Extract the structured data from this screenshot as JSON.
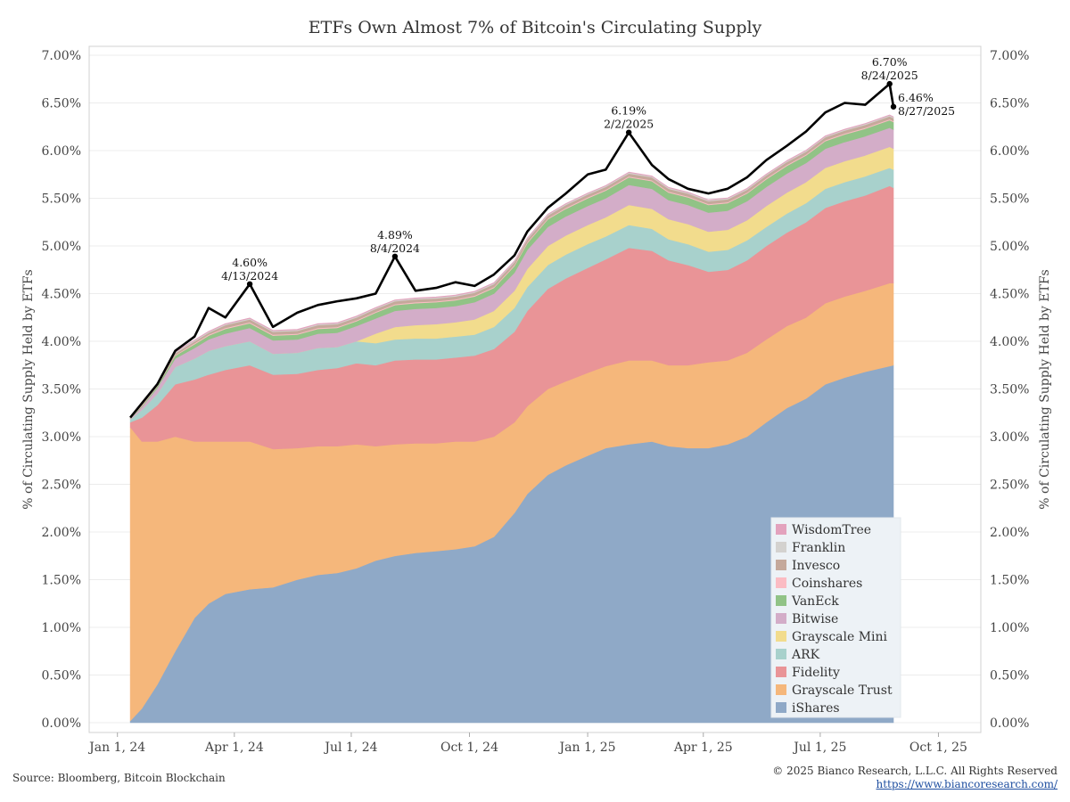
{
  "chart_data": {
    "type": "area",
    "stacked": true,
    "title": "ETFs Own Almost 7% of Bitcoin's Circulating Supply",
    "ylabel": "% of Circulating Supply Held by ETFs",
    "ylabel_right": "% of Circulating Supply Held by ETFs",
    "ylim": [
      0,
      7
    ],
    "y_ticks": [
      "0.00%",
      "0.50%",
      "1.00%",
      "1.50%",
      "2.00%",
      "2.50%",
      "3.00%",
      "3.50%",
      "4.00%",
      "4.50%",
      "5.00%",
      "5.50%",
      "6.00%",
      "6.50%",
      "7.00%"
    ],
    "x_ticks": [
      "Jan 1, 24",
      "Apr 1, 24",
      "Jul 1, 24",
      "Oct 1, 24",
      "Jan 1, 25",
      "Apr 1, 25",
      "Jul 1, 25",
      "Oct 1, 25"
    ],
    "x": [
      "2024-01-11",
      "2024-01-20",
      "2024-02-01",
      "2024-02-15",
      "2024-03-01",
      "2024-03-12",
      "2024-03-25",
      "2024-04-13",
      "2024-05-01",
      "2024-05-20",
      "2024-06-05",
      "2024-06-20",
      "2024-07-05",
      "2024-07-20",
      "2024-08-04",
      "2024-08-20",
      "2024-09-05",
      "2024-09-20",
      "2024-10-05",
      "2024-10-20",
      "2024-11-05",
      "2024-11-15",
      "2024-12-01",
      "2024-12-15",
      "2025-01-01",
      "2025-01-15",
      "2025-02-02",
      "2025-02-20",
      "2025-03-05",
      "2025-03-20",
      "2025-04-05",
      "2025-04-20",
      "2025-05-05",
      "2025-05-20",
      "2025-06-05",
      "2025-06-20",
      "2025-07-05",
      "2025-07-20",
      "2025-08-05",
      "2025-08-24",
      "2025-08-27"
    ],
    "series": [
      {
        "name": "iShares",
        "color": "#8fa9c7",
        "values": [
          0.02,
          0.15,
          0.4,
          0.75,
          1.1,
          1.25,
          1.35,
          1.4,
          1.42,
          1.5,
          1.55,
          1.57,
          1.62,
          1.7,
          1.75,
          1.78,
          1.8,
          1.82,
          1.85,
          1.95,
          2.2,
          2.4,
          2.6,
          2.7,
          2.8,
          2.88,
          2.92,
          2.95,
          2.9,
          2.88,
          2.88,
          2.92,
          3.0,
          3.15,
          3.3,
          3.4,
          3.55,
          3.62,
          3.68,
          3.74,
          3.75
        ]
      },
      {
        "name": "Grayscale Trust",
        "color": "#f5b77b",
        "values": [
          3.08,
          2.8,
          2.55,
          2.25,
          1.85,
          1.7,
          1.6,
          1.55,
          1.45,
          1.38,
          1.35,
          1.33,
          1.3,
          1.2,
          1.17,
          1.15,
          1.13,
          1.13,
          1.1,
          1.05,
          0.95,
          0.92,
          0.9,
          0.88,
          0.87,
          0.86,
          0.88,
          0.85,
          0.85,
          0.87,
          0.9,
          0.88,
          0.88,
          0.87,
          0.86,
          0.85,
          0.85,
          0.85,
          0.85,
          0.87,
          0.86
        ]
      },
      {
        "name": "Fidelity",
        "color": "#e99497",
        "values": [
          0.05,
          0.25,
          0.38,
          0.55,
          0.65,
          0.7,
          0.75,
          0.8,
          0.78,
          0.78,
          0.8,
          0.82,
          0.85,
          0.85,
          0.88,
          0.88,
          0.88,
          0.88,
          0.9,
          0.92,
          0.95,
          1.0,
          1.05,
          1.08,
          1.1,
          1.12,
          1.18,
          1.15,
          1.1,
          1.05,
          0.95,
          0.95,
          0.97,
          0.98,
          0.98,
          1.0,
          1.0,
          1.0,
          1.0,
          1.02,
          1.0
        ]
      },
      {
        "name": "ARK",
        "color": "#a8d1cc",
        "values": [
          0.03,
          0.08,
          0.12,
          0.18,
          0.22,
          0.25,
          0.25,
          0.25,
          0.22,
          0.22,
          0.23,
          0.22,
          0.23,
          0.23,
          0.22,
          0.22,
          0.22,
          0.22,
          0.22,
          0.23,
          0.25,
          0.25,
          0.25,
          0.25,
          0.25,
          0.24,
          0.24,
          0.23,
          0.22,
          0.22,
          0.21,
          0.21,
          0.21,
          0.2,
          0.2,
          0.2,
          0.2,
          0.2,
          0.2,
          0.19,
          0.19
        ]
      },
      {
        "name": "Grayscale Mini",
        "color": "#f2dc8d",
        "values": [
          0,
          0,
          0,
          0,
          0,
          0,
          0,
          0,
          0,
          0,
          0,
          0,
          0,
          0.1,
          0.13,
          0.14,
          0.15,
          0.15,
          0.16,
          0.17,
          0.18,
          0.19,
          0.2,
          0.2,
          0.2,
          0.2,
          0.21,
          0.21,
          0.21,
          0.21,
          0.21,
          0.21,
          0.21,
          0.22,
          0.22,
          0.22,
          0.22,
          0.22,
          0.22,
          0.22,
          0.22
        ]
      },
      {
        "name": "Bitwise",
        "color": "#d3adc8",
        "values": [
          0.01,
          0.03,
          0.06,
          0.09,
          0.11,
          0.12,
          0.13,
          0.14,
          0.14,
          0.14,
          0.15,
          0.15,
          0.16,
          0.16,
          0.17,
          0.17,
          0.17,
          0.17,
          0.18,
          0.18,
          0.19,
          0.2,
          0.2,
          0.2,
          0.2,
          0.2,
          0.21,
          0.21,
          0.2,
          0.2,
          0.2,
          0.2,
          0.2,
          0.2,
          0.2,
          0.2,
          0.2,
          0.2,
          0.2,
          0.2,
          0.2
        ]
      },
      {
        "name": "VanEck",
        "color": "#91c386",
        "values": [
          0.005,
          0.01,
          0.02,
          0.03,
          0.04,
          0.04,
          0.05,
          0.05,
          0.05,
          0.05,
          0.05,
          0.05,
          0.05,
          0.06,
          0.06,
          0.06,
          0.06,
          0.06,
          0.06,
          0.06,
          0.07,
          0.07,
          0.08,
          0.08,
          0.08,
          0.08,
          0.08,
          0.08,
          0.08,
          0.08,
          0.08,
          0.08,
          0.08,
          0.08,
          0.08,
          0.08,
          0.08,
          0.08,
          0.08,
          0.08,
          0.08
        ]
      },
      {
        "name": "Coinshares",
        "color": "#fbbcc3",
        "values": [
          0.005,
          0.005,
          0.005,
          0.005,
          0.01,
          0.01,
          0.01,
          0.01,
          0.01,
          0.01,
          0.01,
          0.01,
          0.01,
          0.01,
          0.01,
          0.01,
          0.01,
          0.01,
          0.01,
          0.01,
          0.01,
          0.01,
          0.01,
          0.01,
          0.01,
          0.01,
          0.01,
          0.01,
          0.01,
          0.01,
          0.01,
          0.01,
          0.01,
          0.01,
          0.01,
          0.01,
          0.01,
          0.01,
          0.01,
          0.01,
          0.01
        ]
      },
      {
        "name": "Invesco",
        "color": "#c5a99b",
        "values": [
          0.005,
          0.01,
          0.01,
          0.02,
          0.02,
          0.02,
          0.03,
          0.03,
          0.03,
          0.03,
          0.03,
          0.03,
          0.03,
          0.03,
          0.03,
          0.03,
          0.03,
          0.03,
          0.03,
          0.03,
          0.03,
          0.03,
          0.03,
          0.03,
          0.03,
          0.03,
          0.03,
          0.03,
          0.03,
          0.03,
          0.03,
          0.03,
          0.03,
          0.03,
          0.03,
          0.03,
          0.03,
          0.03,
          0.03,
          0.03,
          0.03
        ]
      },
      {
        "name": "Franklin",
        "color": "#d4d2cf",
        "values": [
          0.002,
          0.005,
          0.01,
          0.01,
          0.01,
          0.01,
          0.01,
          0.01,
          0.01,
          0.01,
          0.01,
          0.01,
          0.01,
          0.01,
          0.01,
          0.01,
          0.01,
          0.01,
          0.01,
          0.01,
          0.01,
          0.01,
          0.01,
          0.01,
          0.01,
          0.01,
          0.01,
          0.01,
          0.01,
          0.01,
          0.01,
          0.01,
          0.01,
          0.01,
          0.01,
          0.01,
          0.01,
          0.01,
          0.01,
          0.01,
          0.01
        ]
      },
      {
        "name": "WisdomTree",
        "color": "#e3a2bd",
        "values": [
          0.002,
          0.003,
          0.005,
          0.005,
          0.005,
          0.005,
          0.005,
          0.005,
          0.005,
          0.005,
          0.005,
          0.005,
          0.005,
          0.005,
          0.005,
          0.005,
          0.005,
          0.005,
          0.005,
          0.005,
          0.005,
          0.005,
          0.005,
          0.005,
          0.005,
          0.005,
          0.005,
          0.005,
          0.005,
          0.005,
          0.005,
          0.005,
          0.005,
          0.005,
          0.005,
          0.005,
          0.005,
          0.005,
          0.005,
          0.005,
          0.005
        ]
      }
    ],
    "total_line": {
      "values": [
        3.2,
        3.35,
        3.55,
        3.9,
        4.05,
        4.35,
        4.25,
        4.6,
        4.15,
        4.3,
        4.38,
        4.42,
        4.45,
        4.5,
        4.89,
        4.53,
        4.56,
        4.62,
        4.58,
        4.7,
        4.9,
        5.15,
        5.4,
        5.55,
        5.75,
        5.8,
        6.19,
        5.85,
        5.7,
        5.6,
        5.55,
        5.6,
        5.72,
        5.9,
        6.05,
        6.2,
        6.4,
        6.5,
        6.48,
        6.7,
        6.46
      ]
    },
    "annotations": [
      {
        "value": "4.60%",
        "date": "4/13/2024",
        "x": "2024-04-13",
        "y": 4.6
      },
      {
        "value": "4.89%",
        "date": "8/4/2024",
        "x": "2024-08-04",
        "y": 4.89
      },
      {
        "value": "6.19%",
        "date": "2/2/2025",
        "x": "2025-02-02",
        "y": 6.19
      },
      {
        "value": "6.70%",
        "date": "8/24/2025",
        "x": "2025-08-24",
        "y": 6.7
      },
      {
        "value": "6.46%",
        "date": "8/27/2025",
        "x": "2025-08-27",
        "y": 6.46
      }
    ],
    "legend_position": "bottom-right",
    "grid": true
  },
  "footer": {
    "source": "Source: Bloomberg, Bitcoin Blockchain",
    "copyright": "© 2025 Bianco Research, L.L.C. All Rights Reserved",
    "url": "https://www.biancoresearch.com/"
  }
}
